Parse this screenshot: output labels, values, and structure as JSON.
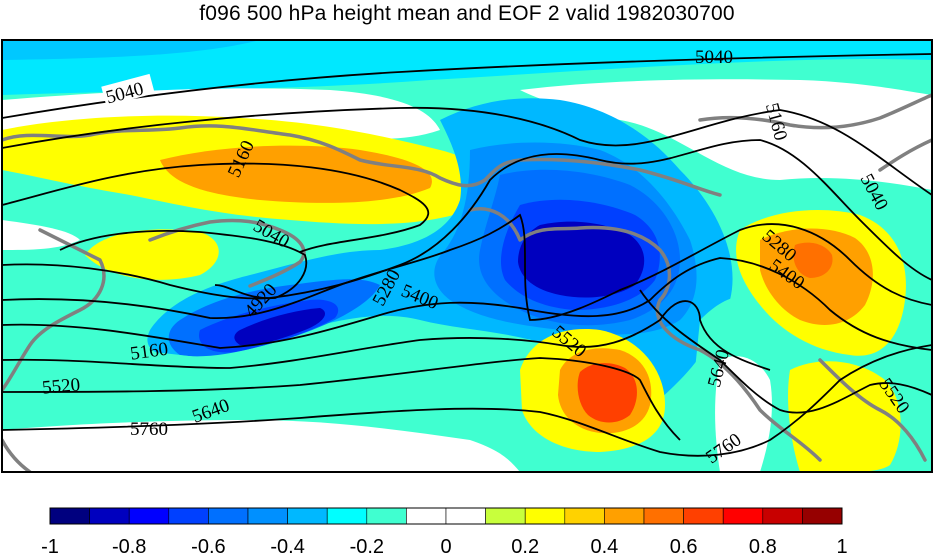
{
  "title": "f096 500 hPa height mean and EOF 2 valid 1982030700",
  "colorbar": {
    "tick_labels": [
      "-1",
      "-0.8",
      "-0.6",
      "-0.4",
      "-0.2",
      "0",
      "0.2",
      "0.4",
      "0.6",
      "0.8",
      "1"
    ],
    "colors": [
      "#00007f",
      "#0000bf",
      "#0000ff",
      "#0040ff",
      "#0070ff",
      "#0090ff",
      "#00b8ff",
      "#00ffff",
      "#40ffd0",
      "#ffffff",
      "#ffffff",
      "#c8ff3c",
      "#ffff00",
      "#ffd200",
      "#ffa000",
      "#ff7000",
      "#ff4000",
      "#ff0000",
      "#c80000",
      "#960000"
    ]
  },
  "contour_labels": [
    "5040",
    "5040",
    "5040",
    "5160",
    "5160",
    "5160",
    "5040",
    "4920",
    "5280",
    "5400",
    "5160",
    "5520",
    "5640",
    "5760",
    "5280",
    "5400",
    "5520",
    "5640",
    "5760",
    "5520"
  ]
}
